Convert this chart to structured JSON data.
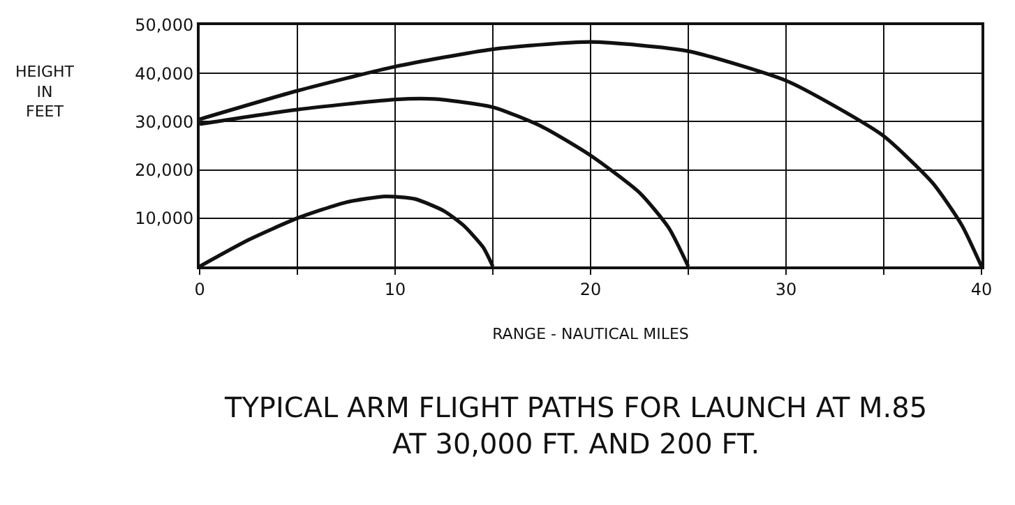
{
  "chart_data": {
    "type": "line",
    "title": "TYPICAL ARM FLIGHT PATHS FOR LAUNCH AT M.85\nAT 30,000 FT. AND 200 FT.",
    "xlabel": "RANGE - NAUTICAL MILES",
    "ylabel": "HEIGHT\nIN\nFEET",
    "series": [
      {
        "color": "#111111",
        "x": [
          0,
          2.5,
          5,
          7.5,
          9.5,
          11,
          12.5,
          13.5,
          14.5,
          15
        ],
        "values": [
          0,
          5500,
          10000,
          13300,
          14500,
          14000,
          11500,
          8500,
          4000,
          0
        ]
      },
      {
        "color": "#111111",
        "x": [
          0,
          5,
          10,
          12,
          15,
          17.5,
          20,
          22.5,
          24,
          25
        ],
        "values": [
          29500,
          32500,
          34600,
          34700,
          33000,
          29000,
          23000,
          15300,
          8000,
          0
        ]
      },
      {
        "color": "#111111",
        "x": [
          0,
          5,
          10,
          15,
          20,
          25,
          30,
          32.5,
          35,
          37.5,
          39,
          40
        ],
        "values": [
          30500,
          36400,
          41400,
          45000,
          46500,
          44600,
          38500,
          33200,
          27000,
          17300,
          8500,
          0
        ]
      }
    ],
    "xlim": [
      0,
      40
    ],
    "xticks": [
      0,
      {
        "value": 5,
        "label": null
      },
      10,
      {
        "value": 15,
        "label": null
      },
      20,
      {
        "value": 25,
        "label": null
      },
      30,
      {
        "value": 35,
        "label": null
      },
      40
    ],
    "ylim": [
      0,
      50000
    ],
    "yticks": [
      {
        "value": 0,
        "label": null
      },
      {
        "value": 10000,
        "label": "10,000"
      },
      {
        "value": 20000,
        "label": "20,000"
      },
      {
        "value": 30000,
        "label": "30,000"
      },
      {
        "value": 40000,
        "label": "40,000"
      },
      {
        "value": 50000,
        "label": "50,000"
      }
    ],
    "grid": true,
    "marker": "none",
    "line_style": "solid"
  }
}
